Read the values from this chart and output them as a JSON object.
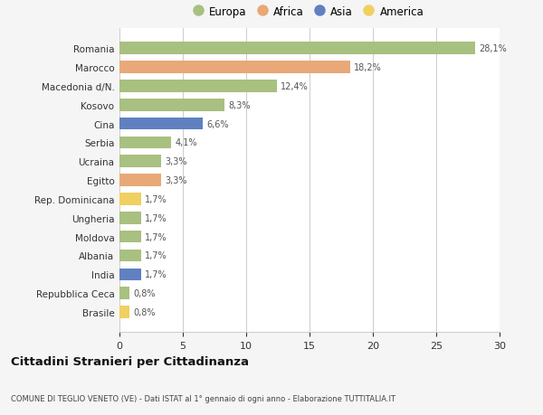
{
  "categories": [
    "Romania",
    "Marocco",
    "Macedonia d/N.",
    "Kosovo",
    "Cina",
    "Serbia",
    "Ucraina",
    "Egitto",
    "Rep. Dominicana",
    "Ungheria",
    "Moldova",
    "Albania",
    "India",
    "Repubblica Ceca",
    "Brasile"
  ],
  "values": [
    28.1,
    18.2,
    12.4,
    8.3,
    6.6,
    4.1,
    3.3,
    3.3,
    1.7,
    1.7,
    1.7,
    1.7,
    1.7,
    0.8,
    0.8
  ],
  "labels": [
    "28,1%",
    "18,2%",
    "12,4%",
    "8,3%",
    "6,6%",
    "4,1%",
    "3,3%",
    "3,3%",
    "1,7%",
    "1,7%",
    "1,7%",
    "1,7%",
    "1,7%",
    "0,8%",
    "0,8%"
  ],
  "continents": [
    "Europa",
    "Africa",
    "Europa",
    "Europa",
    "Asia",
    "Europa",
    "Europa",
    "Africa",
    "America",
    "Europa",
    "Europa",
    "Europa",
    "Asia",
    "Europa",
    "America"
  ],
  "colors": {
    "Europa": "#a8c080",
    "Africa": "#e8a878",
    "Asia": "#6080c0",
    "America": "#f0d060"
  },
  "legend_order": [
    "Europa",
    "Africa",
    "Asia",
    "America"
  ],
  "title": "Cittadini Stranieri per Cittadinanza",
  "subtitle": "COMUNE DI TEGLIO VENETO (VE) - Dati ISTAT al 1° gennaio di ogni anno - Elaborazione TUTTITALIA.IT",
  "xlim": [
    0,
    30
  ],
  "xticks": [
    0,
    5,
    10,
    15,
    20,
    25,
    30
  ],
  "background_color": "#f5f5f5",
  "plot_bg_color": "#ffffff"
}
